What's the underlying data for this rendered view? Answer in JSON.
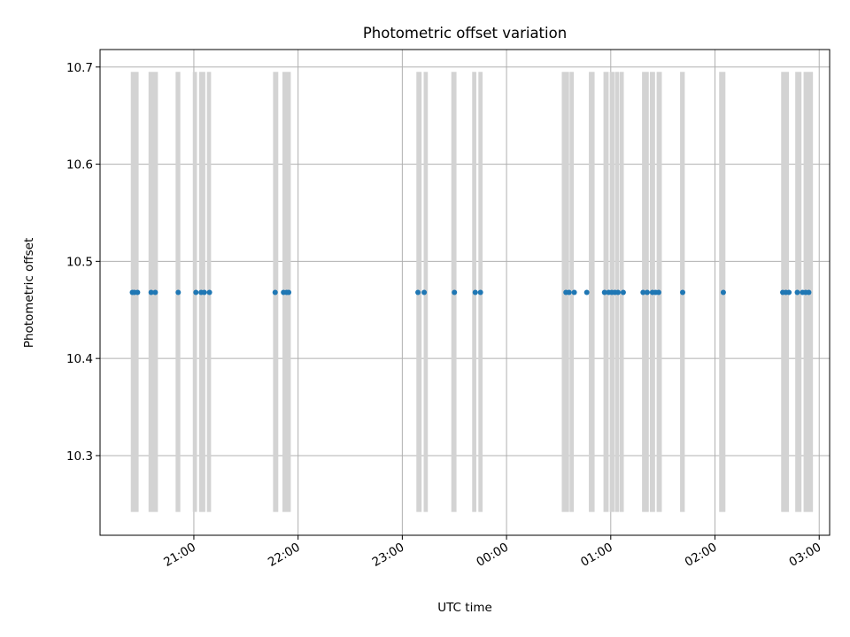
{
  "chart_data": {
    "type": "scatter",
    "title": "Photometric offset variation",
    "xlabel": "UTC time",
    "ylabel": "Photometric offset",
    "x_unit": "UTC time (hours, 20:00 = 20.0; after midnight = 24 + hour)",
    "xlim": [
      20.1,
      27.1
    ],
    "ylim": [
      10.218,
      10.718
    ],
    "grid": true,
    "x_ticks": [
      {
        "value": 21,
        "label": "21:00"
      },
      {
        "value": 22,
        "label": "22:00"
      },
      {
        "value": 23,
        "label": "23:00"
      },
      {
        "value": 24,
        "label": "00:00"
      },
      {
        "value": 25,
        "label": "01:00"
      },
      {
        "value": 26,
        "label": "02:00"
      },
      {
        "value": 27,
        "label": "03:00"
      }
    ],
    "y_ticks": [
      {
        "value": 10.3,
        "label": "10.3"
      },
      {
        "value": 10.4,
        "label": "10.4"
      },
      {
        "value": 10.5,
        "label": "10.5"
      },
      {
        "value": 10.6,
        "label": "10.6"
      },
      {
        "value": 10.7,
        "label": "10.7"
      }
    ],
    "bands": {
      "color": "#d3d3d3",
      "y_range": [
        10.242,
        10.695
      ],
      "intervals": [
        [
          20.395,
          20.47
        ],
        [
          20.565,
          20.655
        ],
        [
          20.825,
          20.87
        ],
        [
          20.99,
          21.03
        ],
        [
          21.05,
          21.11
        ],
        [
          21.125,
          21.165
        ],
        [
          21.76,
          21.81
        ],
        [
          21.85,
          21.93
        ],
        [
          23.135,
          23.185
        ],
        [
          23.205,
          23.245
        ],
        [
          23.47,
          23.52
        ],
        [
          23.67,
          23.71
        ],
        [
          23.73,
          23.77
        ],
        [
          24.53,
          24.6
        ],
        [
          24.605,
          24.645
        ],
        [
          24.79,
          24.845
        ],
        [
          24.93,
          24.98
        ],
        [
          24.99,
          25.035
        ],
        [
          25.04,
          25.08
        ],
        [
          25.085,
          25.125
        ],
        [
          25.3,
          25.365
        ],
        [
          25.375,
          25.425
        ],
        [
          25.44,
          25.49
        ],
        [
          25.665,
          25.71
        ],
        [
          26.04,
          26.1
        ],
        [
          26.635,
          26.71
        ],
        [
          26.77,
          26.83
        ],
        [
          26.85,
          26.94
        ]
      ]
    },
    "series": [
      {
        "color": "#1f77b4",
        "points": [
          [
            20.41,
            10.468
          ],
          [
            20.43,
            10.468
          ],
          [
            20.46,
            10.468
          ],
          [
            20.59,
            10.468
          ],
          [
            20.63,
            10.468
          ],
          [
            20.85,
            10.468
          ],
          [
            21.02,
            10.468
          ],
          [
            21.07,
            10.468
          ],
          [
            21.1,
            10.468
          ],
          [
            21.15,
            10.468
          ],
          [
            21.78,
            10.468
          ],
          [
            21.86,
            10.468
          ],
          [
            21.89,
            10.468
          ],
          [
            21.91,
            10.468
          ],
          [
            23.15,
            10.468
          ],
          [
            23.21,
            10.468
          ],
          [
            23.5,
            10.468
          ],
          [
            23.7,
            10.468
          ],
          [
            23.75,
            10.468
          ],
          [
            24.57,
            10.468
          ],
          [
            24.6,
            10.468
          ],
          [
            24.65,
            10.468
          ],
          [
            24.77,
            10.468
          ],
          [
            24.94,
            10.468
          ],
          [
            24.98,
            10.468
          ],
          [
            25.01,
            10.468
          ],
          [
            25.04,
            10.468
          ],
          [
            25.07,
            10.468
          ],
          [
            25.12,
            10.468
          ],
          [
            25.31,
            10.468
          ],
          [
            25.35,
            10.468
          ],
          [
            25.4,
            10.468
          ],
          [
            25.43,
            10.468
          ],
          [
            25.46,
            10.468
          ],
          [
            25.69,
            10.468
          ],
          [
            26.08,
            10.468
          ],
          [
            26.65,
            10.468
          ],
          [
            26.68,
            10.468
          ],
          [
            26.71,
            10.468
          ],
          [
            26.79,
            10.468
          ],
          [
            26.84,
            10.468
          ],
          [
            26.87,
            10.468
          ],
          [
            26.9,
            10.468
          ]
        ]
      }
    ]
  }
}
